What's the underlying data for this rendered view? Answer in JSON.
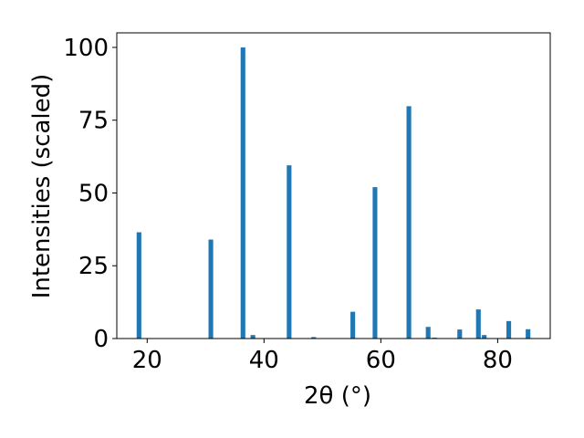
{
  "chart_data": {
    "type": "bar",
    "xlabel": "2θ (°)",
    "ylabel": "Intensities (scaled)",
    "x": [
      18.6,
      30.9,
      36.4,
      38.1,
      44.3,
      48.5,
      55.2,
      59.0,
      64.8,
      68.1,
      69.2,
      73.5,
      76.7,
      77.7,
      81.9,
      85.2
    ],
    "values": [
      36.5,
      34,
      100,
      1.2,
      59.5,
      0.5,
      9.2,
      52,
      79.8,
      4,
      0.3,
      3.1,
      10,
      1.2,
      6,
      3.2
    ],
    "bar_width": 0.8,
    "color": "#1f77b4",
    "xlim": [
      14.8,
      89
    ],
    "xticks": [
      20,
      40,
      60,
      80
    ],
    "ylim": [
      0,
      105
    ],
    "yticks": [
      0,
      25,
      50,
      75,
      100
    ]
  }
}
